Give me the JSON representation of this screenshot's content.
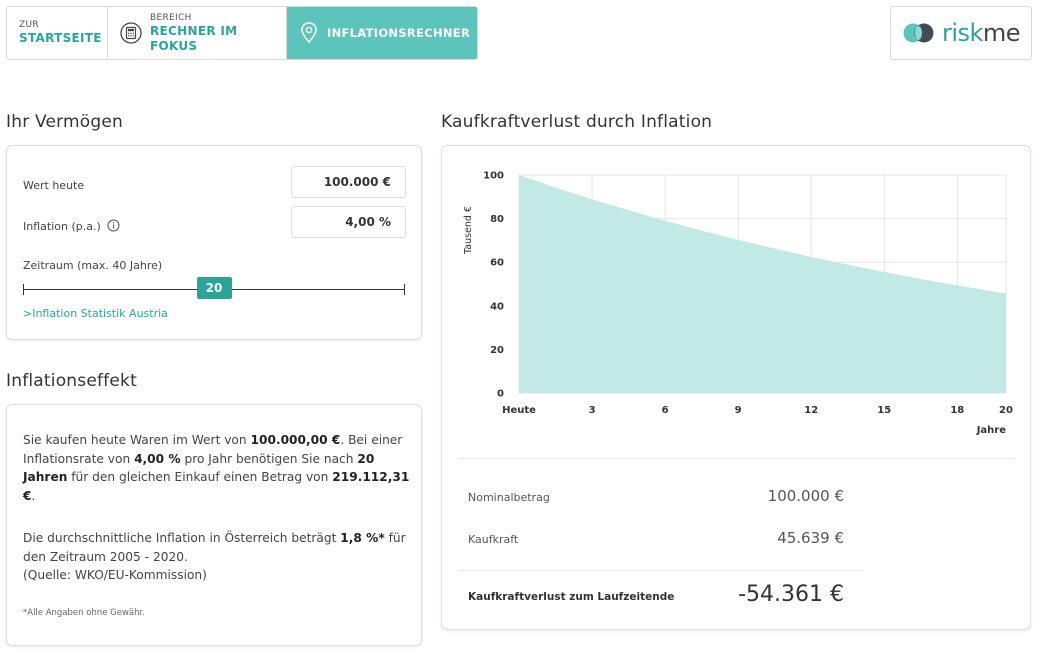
{
  "nav": {
    "home": {
      "small": "ZUR",
      "big": "STARTSEITE"
    },
    "area": {
      "small": "BEREICH",
      "big": "RECHNER IM FOKUS"
    },
    "active": {
      "big": "INFLATIONSRECHNER"
    }
  },
  "logo": {
    "text_a": "risk",
    "text_b": "me"
  },
  "vermoegen": {
    "heading": "Ihr Vermögen",
    "wert_label": "Wert heute",
    "wert_value": "100.000 €",
    "inflation_label": "Inflation (p.a.)",
    "inflation_value": "4,00 %",
    "zeitraum_label": "Zeitraum (max. 40 Jahre)",
    "slider_value": "20",
    "slider_fraction": 0.5,
    "link": ">Inflation Statistik Austria"
  },
  "effekt": {
    "heading": "Inflationseffekt",
    "p1": {
      "t1": "Sie kaufen heute Waren im Wert von ",
      "b1": "100.000,00 €",
      "t2": ". Bei einer Inflationsrate von ",
      "b2": "4,00 %",
      "t3": " pro Jahr benötigen Sie nach ",
      "b3": "20 Jahren",
      "t4": " für den gleichen Einkauf einen Betrag von ",
      "b4": "219.112,31 €",
      "t5": "."
    },
    "p2": {
      "t1": "Die durchschnittliche Inflation in Österreich beträgt ",
      "b1": "1,8 %*",
      "t2": " für den Zeitraum 2005 - 2020.",
      "t3": "(Quelle: WKO/EU-Kommission)"
    },
    "footnote": "*Alle Angaben ohne Gewähr."
  },
  "kaufkraft": {
    "heading": "Kaufkraftverlust durch Inflation",
    "nominal_label": "Nominalbetrag",
    "nominal_value": "100.000 €",
    "kaufkraft_label": "Kaufkraft",
    "kaufkraft_value": "45.639 €",
    "verlust_label": "Kaufkraftverlust zum Laufzeitende",
    "verlust_value": "-54.361 €"
  },
  "colors": {
    "accent": "#2ba59a",
    "accent_light": "#5cc4bb",
    "area_fill": "#c3e9e6"
  },
  "chart_data": {
    "type": "area",
    "ylabel": "Tausend €",
    "xlabel": "Jahre",
    "ylim": [
      0,
      100
    ],
    "xlim": [
      0,
      20
    ],
    "y_ticks": [
      "0",
      "20",
      "40",
      "60",
      "80",
      "100"
    ],
    "x_ticks": [
      {
        "x": 0,
        "label": "Heute"
      },
      {
        "x": 3,
        "label": "3"
      },
      {
        "x": 6,
        "label": "6"
      },
      {
        "x": 9,
        "label": "9"
      },
      {
        "x": 12,
        "label": "12"
      },
      {
        "x": 15,
        "label": "15"
      },
      {
        "x": 18,
        "label": "18"
      },
      {
        "x": 20,
        "label": "20"
      }
    ],
    "grid": true,
    "x": [
      0,
      1,
      2,
      3,
      4,
      5,
      6,
      7,
      8,
      9,
      10,
      11,
      12,
      13,
      14,
      15,
      16,
      17,
      18,
      19,
      20
    ],
    "values": [
      100,
      96.15,
      92.46,
      88.9,
      85.48,
      82.19,
      79.03,
      75.99,
      73.07,
      70.26,
      67.56,
      64.96,
      62.46,
      60.06,
      57.75,
      55.53,
      53.39,
      51.34,
      49.36,
      47.46,
      45.64
    ]
  }
}
